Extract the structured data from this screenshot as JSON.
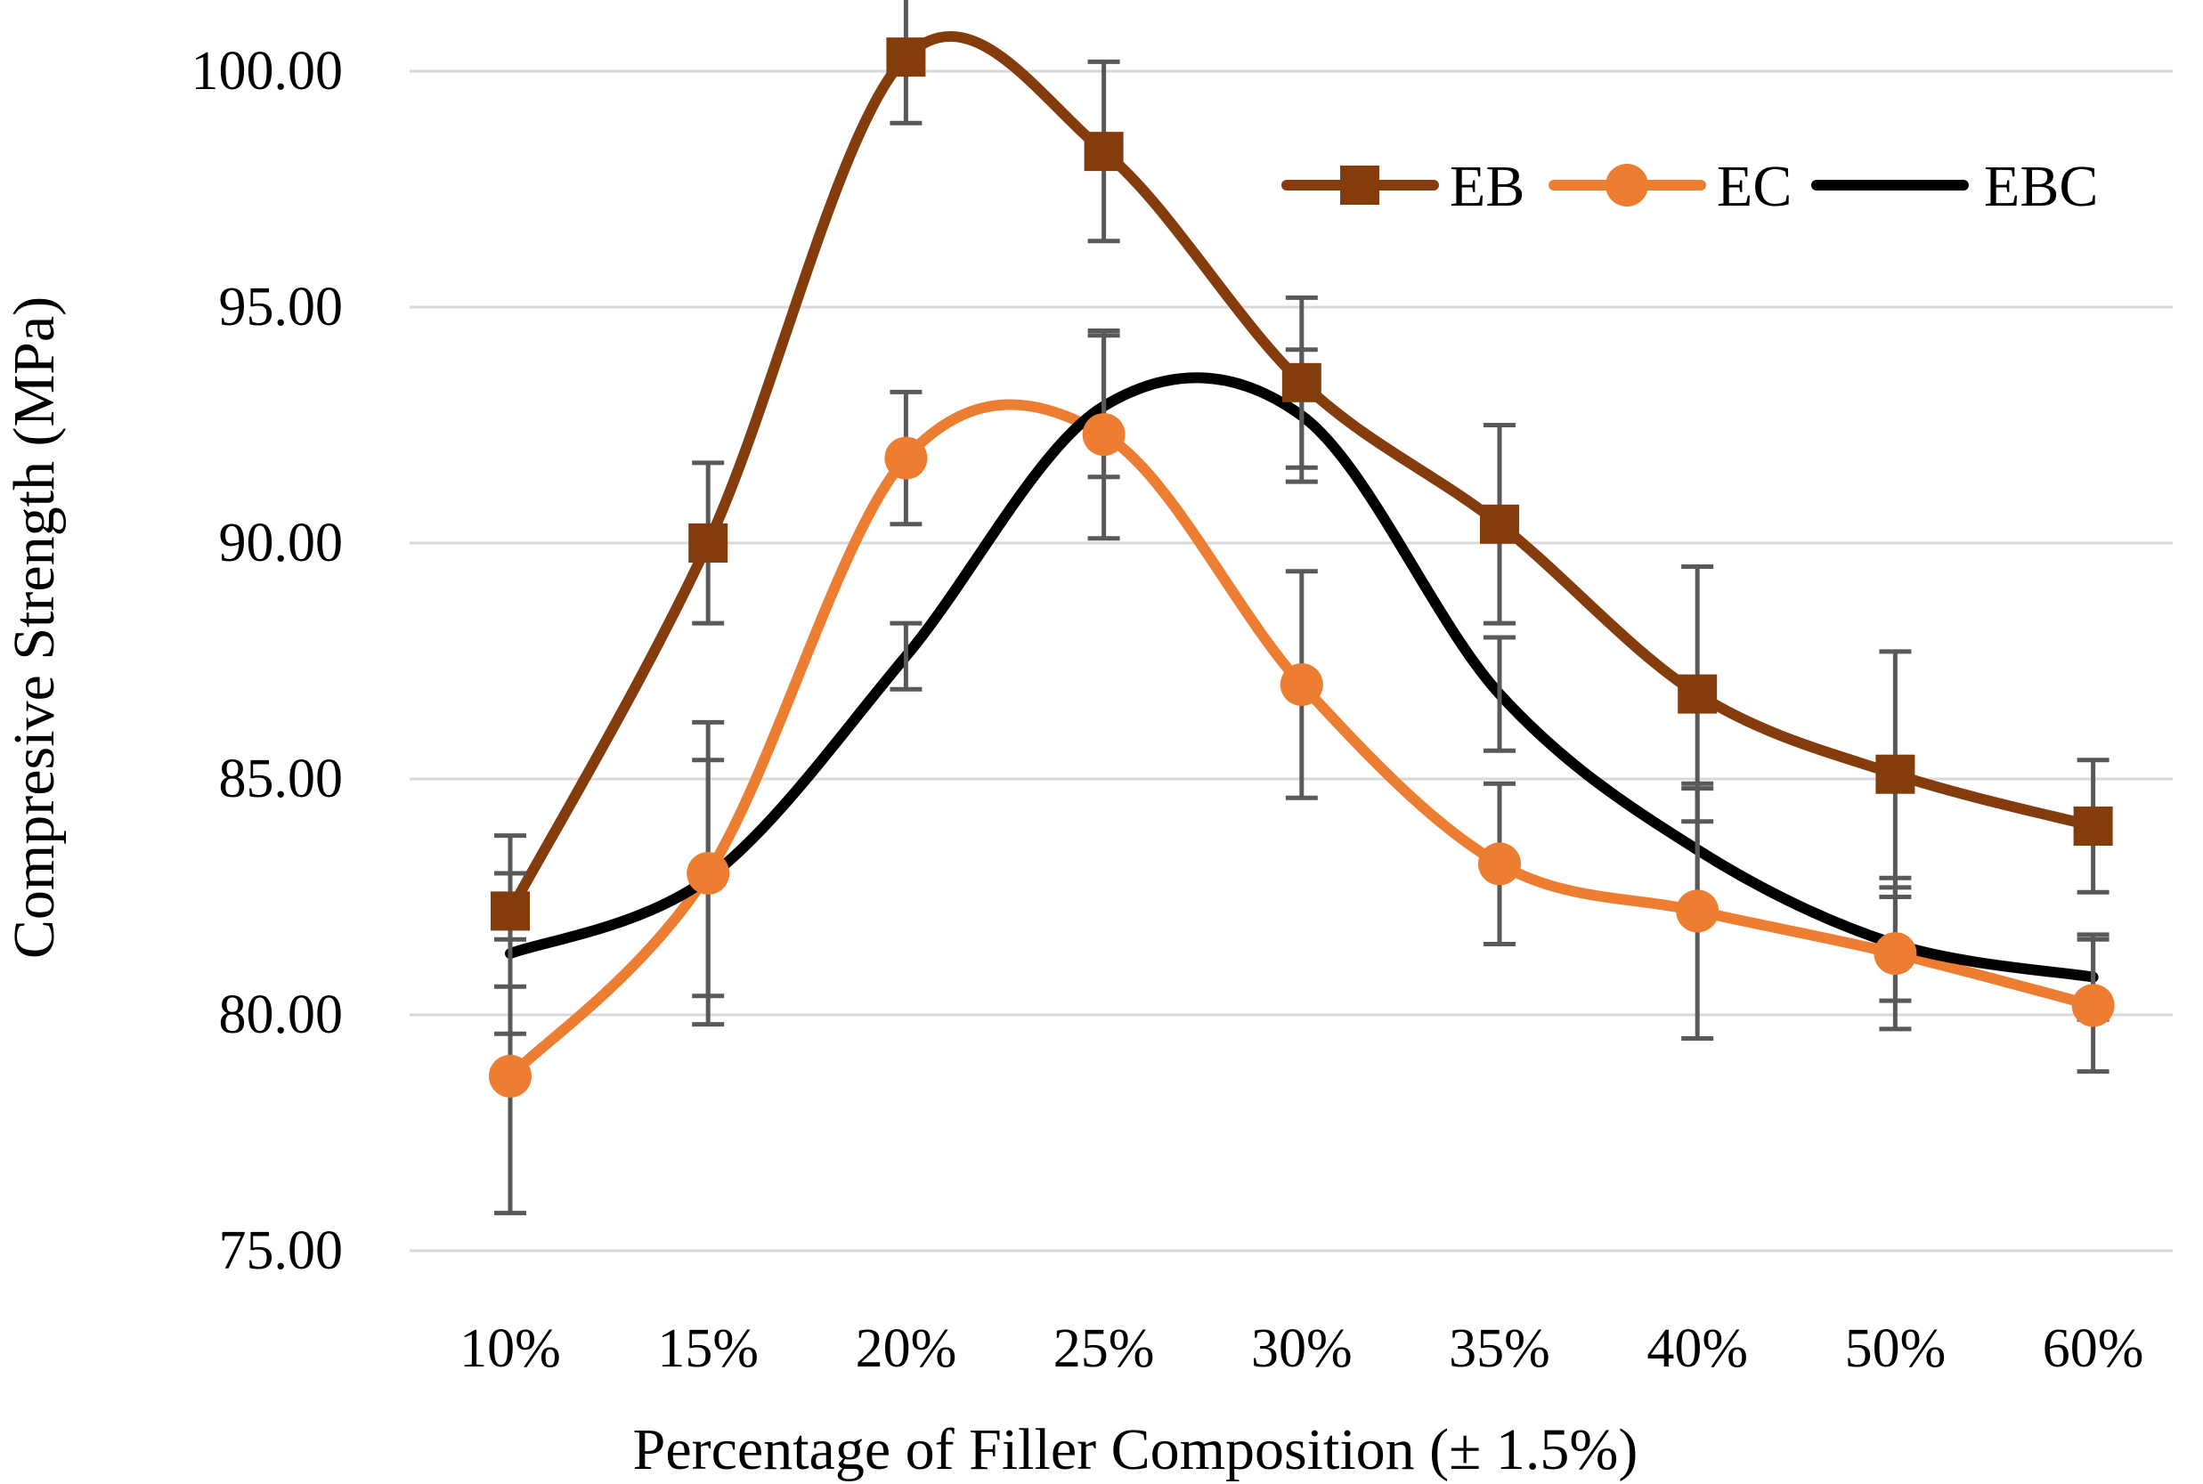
{
  "chart_data": {
    "type": "line",
    "title": "",
    "xlabel": "Percentage of Filler Composition (± 1.5%)",
    "ylabel": "Compresive Strength (MPa)",
    "categories": [
      "10%",
      "15%",
      "20%",
      "25%",
      "30%",
      "35%",
      "40%",
      "50%",
      "60%"
    ],
    "ylim": [
      75,
      100
    ],
    "yticks": [
      75,
      80,
      85,
      90,
      95,
      100
    ],
    "ytick_labels": [
      "75.00",
      "80.00",
      "85.00",
      "90.00",
      "95.00",
      "100.00"
    ],
    "grid": "horizontal",
    "smooth": true,
    "legend_position": "top-right",
    "series": [
      {
        "name": "EB",
        "color": "#843C0C",
        "marker": "square",
        "values": [
          82.2,
          90.0,
          100.3,
          98.3,
          93.4,
          90.4,
          86.8,
          85.1,
          84.0
        ],
        "error": [
          1.6,
          1.7,
          1.4,
          1.9,
          1.8,
          2.1,
          2.7,
          2.6,
          1.4
        ]
      },
      {
        "name": "EC",
        "color": "#ED7D31",
        "marker": "circle",
        "values": [
          78.7,
          83.0,
          91.8,
          92.3,
          87.0,
          83.2,
          82.2,
          81.3,
          80.2
        ],
        "error": [
          2.9,
          3.2,
          1.4,
          2.2,
          2.4,
          1.7,
          2.7,
          1.6,
          1.4
        ]
      },
      {
        "name": "EBC",
        "color": "#000000",
        "marker": "none",
        "values": [
          81.3,
          82.9,
          87.6,
          92.9,
          92.7,
          86.8,
          83.5,
          81.5,
          80.8
        ],
        "error": [
          1.7,
          2.5,
          0.7,
          1.5,
          1.4,
          1.2,
          1.3,
          1.2,
          0.9
        ]
      }
    ]
  }
}
